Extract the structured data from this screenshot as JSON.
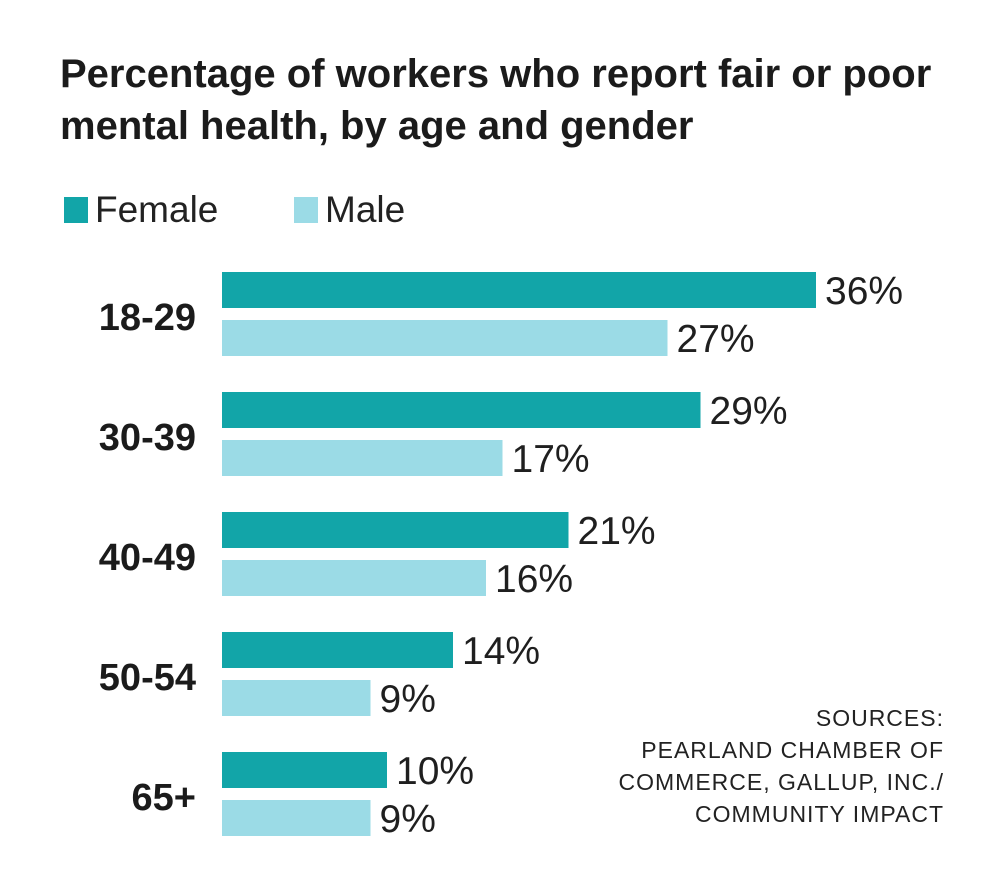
{
  "chart_data": {
    "type": "bar",
    "orientation": "horizontal",
    "title": "Percentage of workers who report fair or poor mental health, by age and gender",
    "categories": [
      "18-29",
      "30-39",
      "40-49",
      "50-54",
      "65+"
    ],
    "series": [
      {
        "name": "Female",
        "values": [
          36,
          29,
          21,
          14,
          10
        ],
        "color": "#12a5a8"
      },
      {
        "name": "Male",
        "values": [
          27,
          17,
          16,
          9,
          9
        ],
        "color": "#9bdbe6"
      }
    ],
    "value_suffix": "%",
    "xlim": [
      0,
      36
    ],
    "xlabel": "",
    "ylabel": "",
    "grid": false,
    "legend_position": "top-left",
    "source_lines": [
      "SOURCES:",
      "PEARLAND CHAMBER OF",
      "COMMERCE, GALLUP, INC./",
      "COMMUNITY IMPACT"
    ]
  }
}
